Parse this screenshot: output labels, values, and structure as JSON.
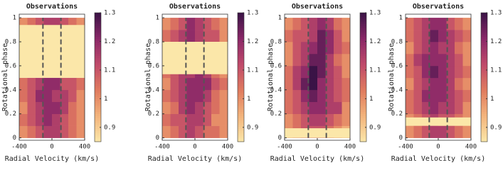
{
  "chart_data": [
    {
      "type": "heatmap",
      "title": "Observations",
      "x_label": "Radial Velocity (km/s)",
      "y_label": "Rotational phase",
      "xlim": [
        -400,
        400
      ],
      "xticks": [
        -400,
        0,
        400
      ],
      "ylim": [
        -0.02,
        1.03
      ],
      "yticks": [
        0,
        0.2,
        0.4,
        0.6,
        0.8,
        1
      ],
      "clim": [
        0.85,
        1.3
      ],
      "cticks": [
        0.9,
        1,
        1.1,
        1.2,
        1.3
      ],
      "colormap": [
        "#fbe7a9",
        "#f3b47c",
        "#e07b5e",
        "#c04a6a",
        "#8a2868",
        "#3a1346"
      ],
      "gap_color": "#fbe7a9",
      "xbins": [
        -400,
        -300,
        -200,
        -100,
        0,
        100,
        200,
        300,
        400
      ],
      "ybins": [
        0,
        0.1,
        0.2,
        0.3,
        0.4,
        0.5,
        0.6,
        0.7,
        0.8,
        0.9,
        1
      ],
      "values": [
        [
          1.0,
          1.05,
          1.1,
          1.15,
          1.15,
          1.1,
          1.05,
          1.0
        ],
        [
          1.05,
          1.1,
          1.15,
          1.2,
          1.15,
          1.1,
          1.05,
          1.0
        ],
        [
          1.0,
          1.1,
          1.15,
          1.2,
          1.2,
          1.15,
          1.05,
          1.0
        ],
        [
          1.05,
          1.1,
          1.2,
          1.2,
          1.15,
          1.15,
          1.1,
          1.0
        ],
        [
          1.05,
          1.1,
          1.15,
          1.2,
          1.2,
          1.1,
          1.1,
          1.05
        ],
        [
          null,
          null,
          null,
          null,
          null,
          null,
          null,
          null
        ],
        [
          null,
          null,
          null,
          null,
          null,
          null,
          null,
          null
        ],
        [
          null,
          null,
          null,
          null,
          null,
          null,
          null,
          null
        ],
        [
          null,
          null,
          null,
          null,
          null,
          null,
          null,
          null
        ],
        [
          1.0,
          1.05,
          1.1,
          1.15,
          1.15,
          1.1,
          1.05,
          1.0
        ]
      ],
      "gap": [
        0.5,
        0.94
      ],
      "dashed_lines": [
        -110,
        110
      ]
    },
    {
      "type": "heatmap",
      "title": "Observations",
      "x_label": "Radial Velocity (km/s)",
      "y_label": "Rotational phase",
      "xlim": [
        -400,
        400
      ],
      "xticks": [
        -400,
        0,
        400
      ],
      "ylim": [
        -0.02,
        1.03
      ],
      "yticks": [
        0,
        0.2,
        0.4,
        0.6,
        0.8,
        1
      ],
      "clim": [
        0.85,
        1.3
      ],
      "cticks": [
        0.9,
        1,
        1.1,
        1.2,
        1.3
      ],
      "colormap": [
        "#fbe7a9",
        "#f3b47c",
        "#e07b5e",
        "#c04a6a",
        "#8a2868",
        "#3a1346"
      ],
      "gap_color": "#fbe7a9",
      "xbins": [
        -400,
        -300,
        -200,
        -100,
        0,
        100,
        200,
        300,
        400
      ],
      "ybins": [
        0,
        0.1,
        0.2,
        0.3,
        0.4,
        0.5,
        0.6,
        0.7,
        0.8,
        0.9,
        1
      ],
      "values": [
        [
          1.0,
          1.05,
          1.1,
          1.15,
          1.1,
          1.05,
          1.05,
          1.0
        ],
        [
          1.05,
          1.1,
          1.1,
          1.15,
          1.15,
          1.1,
          1.0,
          1.0
        ],
        [
          1.0,
          1.05,
          1.15,
          1.2,
          1.15,
          1.1,
          1.05,
          1.0
        ],
        [
          1.05,
          1.1,
          1.15,
          1.2,
          1.2,
          1.15,
          1.05,
          1.0
        ],
        [
          1.0,
          1.1,
          1.15,
          1.2,
          1.2,
          1.2,
          1.1,
          1.05
        ],
        [
          1.05,
          1.1,
          1.15,
          1.15,
          1.2,
          1.15,
          1.05,
          1.0
        ],
        [
          null,
          null,
          null,
          null,
          null,
          null,
          null,
          null
        ],
        [
          null,
          null,
          null,
          null,
          null,
          null,
          null,
          null
        ],
        [
          1.05,
          1.1,
          1.15,
          1.2,
          1.15,
          1.1,
          1.1,
          1.0
        ],
        [
          1.0,
          1.05,
          1.1,
          1.2,
          1.15,
          1.1,
          1.05,
          1.0
        ]
      ],
      "gap": [
        0.53,
        0.8
      ],
      "dashed_lines": [
        -110,
        110
      ]
    },
    {
      "type": "heatmap",
      "title": "Observations",
      "x_label": "Radial Velocity (km/s)",
      "y_label": "Rotational phase",
      "xlim": [
        -400,
        400
      ],
      "xticks": [
        -400,
        0,
        400
      ],
      "ylim": [
        -0.02,
        1.03
      ],
      "yticks": [
        0,
        0.2,
        0.4,
        0.6,
        0.8,
        1
      ],
      "clim": [
        0.85,
        1.3
      ],
      "cticks": [
        0.9,
        1,
        1.1,
        1.2,
        1.3
      ],
      "colormap": [
        "#fbe7a9",
        "#f3b47c",
        "#e07b5e",
        "#c04a6a",
        "#8a2868",
        "#3a1346"
      ],
      "gap_color": "#fbe7a9",
      "xbins": [
        -400,
        -300,
        -200,
        -100,
        0,
        100,
        200,
        300,
        400
      ],
      "ybins": [
        0,
        0.1,
        0.2,
        0.3,
        0.4,
        0.5,
        0.6,
        0.7,
        0.8,
        0.9,
        1
      ],
      "values": [
        [
          1.0,
          1.05,
          1.1,
          1.1,
          1.1,
          1.05,
          1.0,
          0.95
        ],
        [
          1.0,
          1.05,
          1.1,
          1.15,
          1.15,
          1.1,
          1.05,
          1.0
        ],
        [
          1.05,
          1.1,
          1.15,
          1.2,
          1.2,
          1.15,
          1.15,
          1.0
        ],
        [
          1.05,
          1.1,
          1.2,
          1.25,
          1.2,
          1.15,
          1.1,
          1.05
        ],
        [
          1.05,
          1.15,
          1.25,
          1.3,
          1.2,
          1.15,
          1.1,
          1.05
        ],
        [
          1.05,
          1.15,
          1.2,
          1.3,
          1.25,
          1.15,
          1.1,
          1.0
        ],
        [
          1.0,
          1.1,
          1.15,
          1.25,
          1.25,
          1.15,
          1.05,
          1.0
        ],
        [
          1.0,
          1.1,
          1.15,
          1.2,
          1.25,
          1.2,
          1.1,
          1.05
        ],
        [
          1.05,
          1.1,
          1.1,
          1.15,
          1.25,
          1.2,
          1.1,
          1.0
        ],
        [
          1.0,
          1.05,
          1.1,
          1.15,
          1.2,
          1.15,
          1.05,
          1.0
        ]
      ],
      "gap": [
        0,
        0.08
      ],
      "dashed_lines": [
        -110,
        110
      ]
    },
    {
      "type": "heatmap",
      "title": "Observations",
      "x_label": "Radial Velocity (km/s)",
      "y_label": "Rotational phase",
      "xlim": [
        -400,
        400
      ],
      "xticks": [
        -400,
        0,
        400
      ],
      "ylim": [
        -0.02,
        1.03
      ],
      "yticks": [
        0,
        0.2,
        0.4,
        0.6,
        0.8,
        1
      ],
      "clim": [
        0.85,
        1.3
      ],
      "cticks": [
        0.9,
        1,
        1.1,
        1.2,
        1.3
      ],
      "colormap": [
        "#fbe7a9",
        "#f3b47c",
        "#e07b5e",
        "#c04a6a",
        "#8a2868",
        "#3a1346"
      ],
      "gap_color": "#fbe7a9",
      "xbins": [
        -400,
        -300,
        -200,
        -100,
        0,
        100,
        200,
        300,
        400
      ],
      "ybins": [
        0,
        0.1,
        0.2,
        0.3,
        0.4,
        0.5,
        0.6,
        0.7,
        0.8,
        0.9,
        1
      ],
      "values": [
        [
          1.0,
          1.05,
          1.1,
          1.15,
          1.15,
          1.1,
          1.05,
          1.0
        ],
        [
          1.0,
          1.05,
          1.1,
          1.15,
          1.1,
          1.1,
          1.05,
          1.0
        ],
        [
          1.05,
          1.1,
          1.15,
          1.2,
          1.15,
          1.15,
          1.1,
          1.0
        ],
        [
          1.05,
          1.1,
          1.2,
          1.2,
          1.2,
          1.15,
          1.1,
          1.05
        ],
        [
          1.0,
          1.1,
          1.15,
          1.2,
          1.2,
          1.15,
          1.05,
          1.0
        ],
        [
          1.05,
          1.1,
          1.2,
          1.25,
          1.2,
          1.15,
          1.1,
          1.05
        ],
        [
          1.05,
          1.15,
          1.2,
          1.2,
          1.2,
          1.15,
          1.1,
          1.0
        ],
        [
          1.0,
          1.1,
          1.15,
          1.2,
          1.15,
          1.15,
          1.05,
          1.0
        ],
        [
          1.05,
          1.1,
          1.15,
          1.25,
          1.2,
          1.15,
          1.1,
          1.05
        ],
        [
          1.05,
          1.1,
          1.15,
          1.2,
          1.2,
          1.1,
          1.05,
          1.0
        ]
      ],
      "gap": [
        0.1,
        0.17
      ],
      "dashed_lines": [
        -110,
        110
      ]
    }
  ]
}
